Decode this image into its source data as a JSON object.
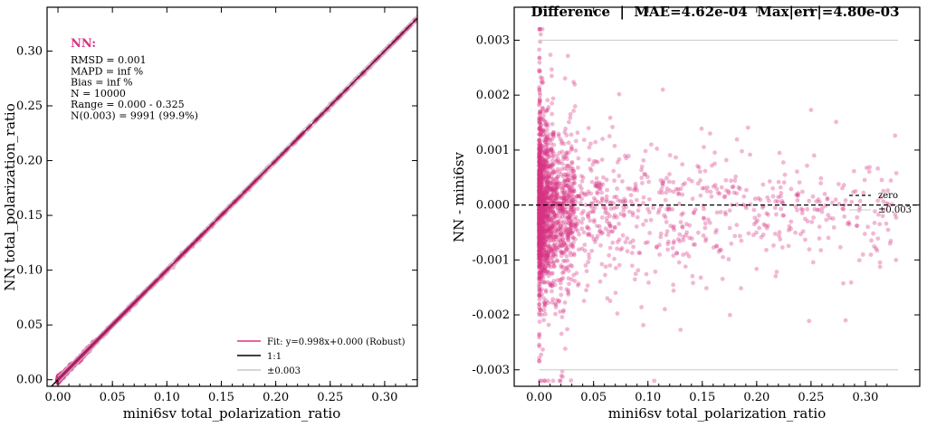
{
  "chart_data": [
    {
      "type": "scatter",
      "panel": "left",
      "xlabel": "mini6sv total_polarization_ratio",
      "ylabel": "NN total_polarization_ratio",
      "xlim": [
        -0.01,
        0.33
      ],
      "ylim": [
        -0.006,
        0.34
      ],
      "xticks": [
        "0.00",
        "0.05",
        "0.10",
        "0.15",
        "0.20",
        "0.25",
        "0.30"
      ],
      "yticks": [
        "0.00",
        "0.05",
        "0.10",
        "0.15",
        "0.20",
        "0.25",
        "0.30"
      ],
      "grid": false,
      "stats_title": "NN:",
      "stats": [
        "RMSD = 0.001",
        "MAPD = inf %",
        "Bias = inf %",
        "N = 10000",
        "Range = 0.000 - 0.325",
        "N(0.003) = 9991 (99.9%)"
      ],
      "fit": {
        "slope": 0.998,
        "intercept": 0.0
      },
      "band": 0.003,
      "legend": [
        "Fit: y=0.998x+0.000 (Robust)",
        "1:1",
        "±0.003"
      ],
      "legend_position": "lower-right",
      "colors": {
        "points": "#d63384",
        "fit": "#e0307f",
        "identity": "#000000",
        "band": "#c8c8c8"
      }
    },
    {
      "type": "scatter",
      "panel": "right",
      "title": "Difference  |  MAE=4.62e-04  Max|err|=4.80e-03",
      "xlabel": "mini6sv total_polarization_ratio",
      "ylabel": "NN - mini6sv",
      "xlim": [
        -0.023,
        0.35
      ],
      "ylim": [
        -0.0033,
        0.0036
      ],
      "xticks": [
        "0.00",
        "0.05",
        "0.10",
        "0.15",
        "0.20",
        "0.25",
        "0.30"
      ],
      "yticks": [
        "-0.003",
        "-0.002",
        "-0.001",
        "0.000",
        "0.001",
        "0.002",
        "0.003"
      ],
      "grid": false,
      "band": 0.003,
      "legend": [
        "zero",
        "±0.003"
      ],
      "legend_position": "center-right",
      "colors": {
        "points": "#d63384",
        "zero": "#000000",
        "band": "#c8c8c8"
      }
    }
  ]
}
